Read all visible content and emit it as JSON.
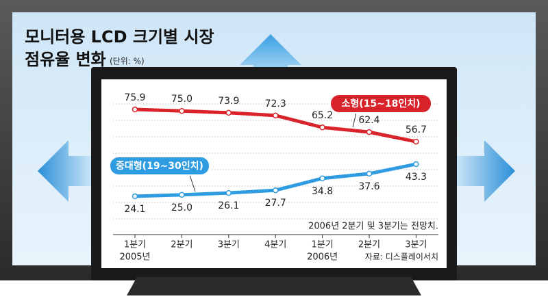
{
  "chart_data": {
    "type": "line",
    "title": [
      "모니터용 LCD 크기별 시장",
      "점유율 변화"
    ],
    "unit": "(단위: %)",
    "categories": [
      "1분기",
      "2분기",
      "3분기",
      "4분기",
      "1분기",
      "2분기",
      "3분기"
    ],
    "category_groups": [
      "2005년",
      null,
      null,
      null,
      "2006년",
      null,
      null
    ],
    "series": [
      {
        "name": "소형(15~18인치)",
        "color": "#d9232b",
        "values": [
          75.9,
          75.0,
          73.9,
          72.3,
          65.2,
          62.4,
          56.7
        ],
        "value_labels": [
          "75.9",
          "75.0",
          "73.9",
          "72.3",
          "65.2",
          "62.4",
          "56.7"
        ]
      },
      {
        "name": "중대형(19~30인치)",
        "color": "#2f9be0",
        "values": [
          24.1,
          25.0,
          26.1,
          27.7,
          34.8,
          37.6,
          43.3
        ],
        "value_labels": [
          "24.1",
          "25.0",
          "26.1",
          "27.7",
          "34.8",
          "37.6",
          "43.3"
        ]
      }
    ],
    "ylim": [
      10,
      85
    ],
    "note": "2006년 2분기 및 3분기는 전망치.",
    "source": "자료: 디스플레이서치"
  }
}
